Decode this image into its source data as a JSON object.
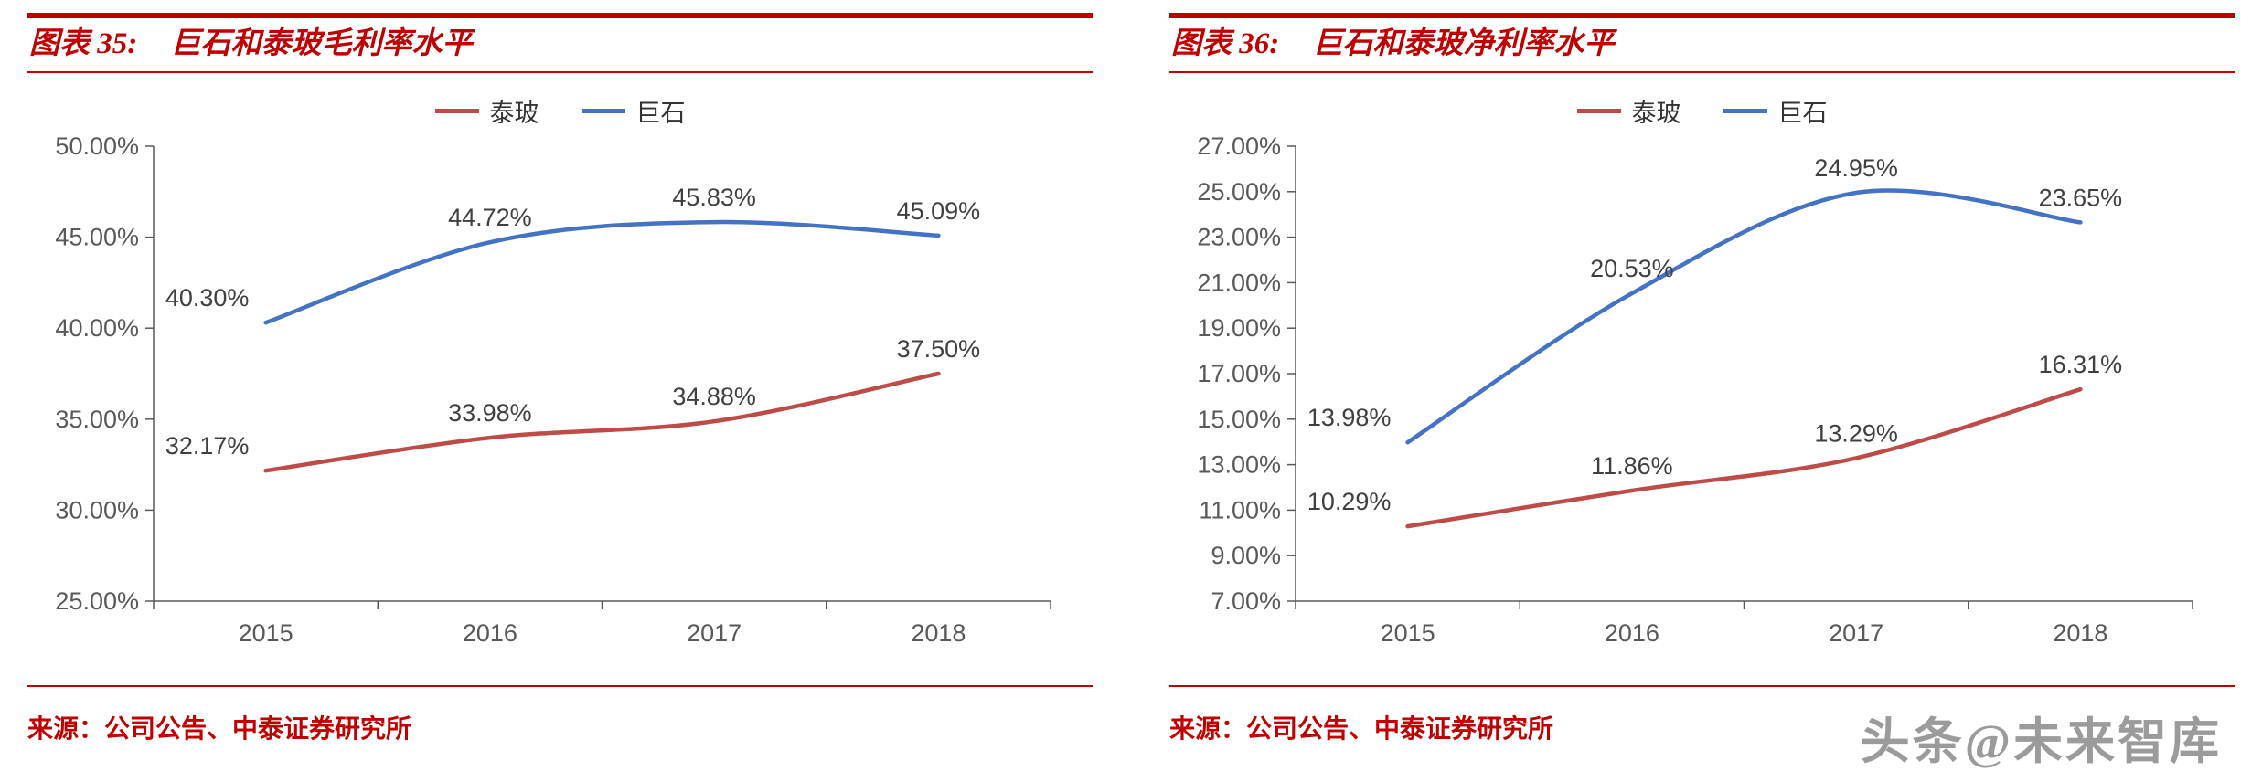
{
  "watermark": "头条@未来智库",
  "charts": [
    {
      "title_prefix": "图表 35:",
      "title": "巨石和泰玻毛利率水平",
      "source": "来源：公司公告、中泰证券研究所",
      "chart_data": {
        "type": "line",
        "title": "巨石和泰玻毛利率水平",
        "categories": [
          "2015",
          "2016",
          "2017",
          "2018"
        ],
        "series": [
          {
            "name": "泰玻",
            "color": "#BE4B48",
            "values": [
              32.17,
              33.98,
              34.88,
              37.5
            ]
          },
          {
            "name": "巨石",
            "color": "#4472C4",
            "values": [
              40.3,
              44.72,
              45.83,
              45.09
            ]
          }
        ],
        "xlabel": "",
        "ylabel": "",
        "value_unit": "%",
        "ylim": [
          25,
          50
        ],
        "ytick_step": 5,
        "grid": false,
        "legend_position": "top"
      }
    },
    {
      "title_prefix": "图表 36:",
      "title": "巨石和泰玻净利率水平",
      "source": "来源：公司公告、中泰证券研究所",
      "chart_data": {
        "type": "line",
        "title": "巨石和泰玻净利率水平",
        "categories": [
          "2015",
          "2016",
          "2017",
          "2018"
        ],
        "series": [
          {
            "name": "泰玻",
            "color": "#BE4B48",
            "values": [
              10.29,
              11.86,
              13.29,
              16.31
            ]
          },
          {
            "name": "巨石",
            "color": "#4472C4",
            "values": [
              13.98,
              20.53,
              24.95,
              23.65
            ]
          }
        ],
        "xlabel": "",
        "ylabel": "",
        "value_unit": "%",
        "ylim": [
          7,
          27
        ],
        "ytick_step": 2,
        "grid": false,
        "legend_position": "top"
      }
    }
  ],
  "style": {
    "accent_red": "#C00000",
    "axis_color": "#595959",
    "data_label_color": "#404040"
  }
}
